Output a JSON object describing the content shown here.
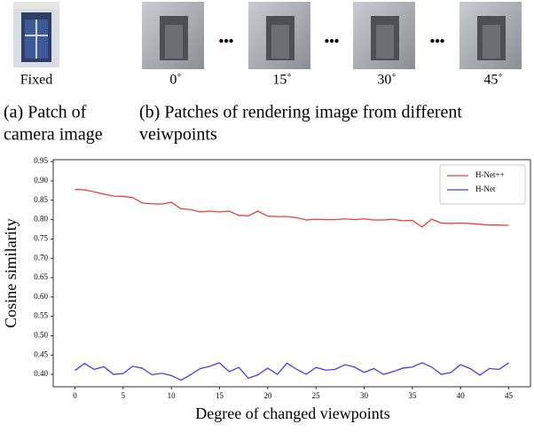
{
  "figure": {
    "patch_labels": [
      "Fixed",
      "0˚",
      "15˚",
      "30˚",
      "45˚"
    ],
    "ellipsis": "•••",
    "caption_a": [
      "(a) Patch of",
      "camera image"
    ],
    "caption_b": [
      "(b) Patches of rendering image from different",
      "veiwpoints"
    ]
  },
  "chart_data": {
    "type": "line",
    "xlabel": "Degree of changed viewpoints",
    "ylabel": "Cosine similarity",
    "x": [
      0,
      1,
      2,
      3,
      4,
      5,
      6,
      7,
      8,
      9,
      10,
      11,
      12,
      13,
      14,
      15,
      16,
      17,
      18,
      19,
      20,
      21,
      22,
      23,
      24,
      25,
      26,
      27,
      28,
      29,
      30,
      31,
      32,
      33,
      34,
      35,
      36,
      37,
      38,
      39,
      40,
      41,
      42,
      43,
      44,
      45
    ],
    "series": [
      {
        "name": "H-Net++",
        "color": "#f03c3c",
        "values": [
          0.878,
          0.877,
          0.872,
          0.866,
          0.861,
          0.86,
          0.857,
          0.843,
          0.841,
          0.84,
          0.845,
          0.828,
          0.826,
          0.82,
          0.822,
          0.82,
          0.822,
          0.811,
          0.81,
          0.822,
          0.809,
          0.808,
          0.808,
          0.805,
          0.799,
          0.801,
          0.8,
          0.8,
          0.802,
          0.8,
          0.802,
          0.799,
          0.799,
          0.801,
          0.797,
          0.798,
          0.781,
          0.801,
          0.791,
          0.79,
          0.791,
          0.79,
          0.788,
          0.786,
          0.786,
          0.785
        ]
      },
      {
        "name": "H-Net",
        "color": "#4040f0",
        "values": [
          0.41,
          0.428,
          0.413,
          0.42,
          0.4,
          0.402,
          0.421,
          0.416,
          0.399,
          0.403,
          0.397,
          0.385,
          0.399,
          0.415,
          0.421,
          0.43,
          0.407,
          0.418,
          0.39,
          0.399,
          0.416,
          0.4,
          0.429,
          0.413,
          0.4,
          0.418,
          0.411,
          0.413,
          0.425,
          0.419,
          0.405,
          0.415,
          0.4,
          0.407,
          0.416,
          0.419,
          0.43,
          0.419,
          0.4,
          0.405,
          0.425,
          0.415,
          0.398,
          0.415,
          0.413,
          0.43
        ]
      }
    ],
    "xlim": [
      -2.25,
      47.25
    ],
    "ylim": [
      0.368,
      0.955
    ],
    "xticks": [
      0,
      5,
      10,
      15,
      20,
      25,
      30,
      35,
      40,
      45
    ],
    "yticks": [
      {
        "value": 0.4,
        "label": "0.40"
      },
      0.45,
      {
        "value": 0.5,
        "label": "0.50"
      },
      0.55,
      {
        "value": 0.6,
        "label": "0.60"
      },
      0.65,
      {
        "value": 0.7,
        "label": "0.70"
      },
      0.75,
      {
        "value": 0.8,
        "label": "0.80"
      },
      0.85,
      {
        "value": 0.9,
        "label": "0.90"
      },
      0.95
    ],
    "legend": "upper right",
    "grid": false
  }
}
